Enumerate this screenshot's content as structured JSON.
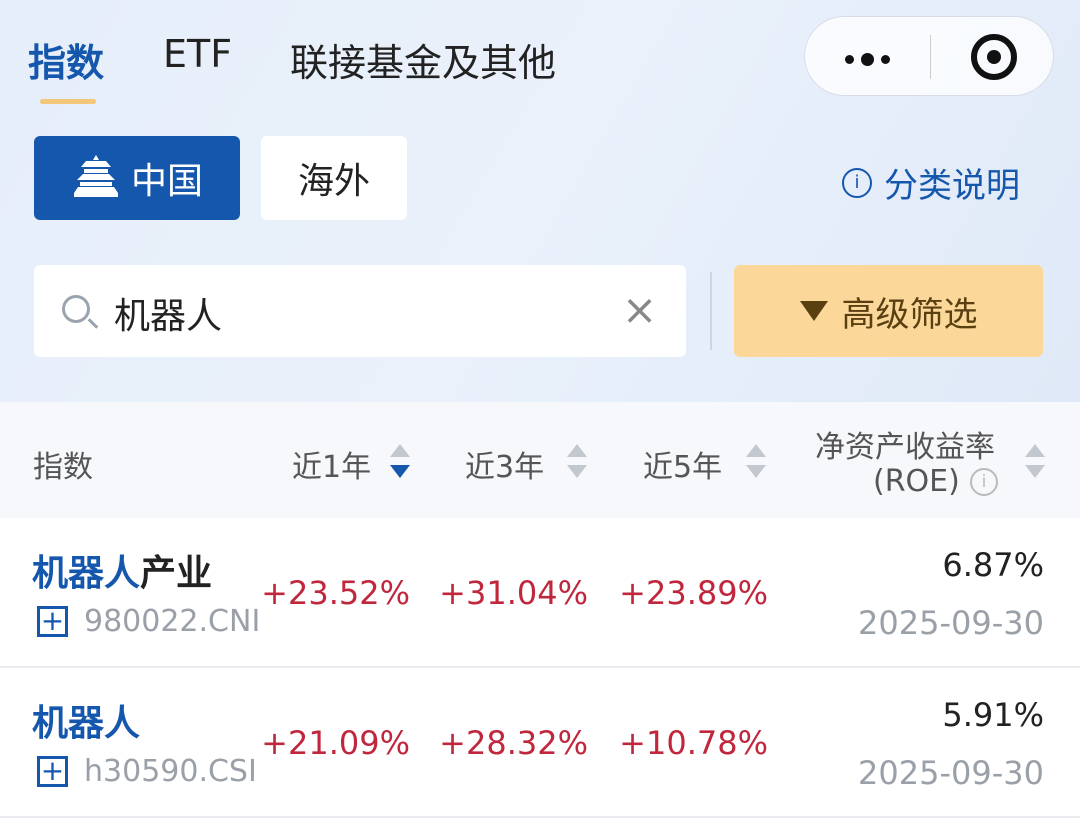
{
  "tabs": [
    {
      "label": "指数",
      "active": true
    },
    {
      "label": "ETF"
    },
    {
      "label": "联接基金及其他"
    }
  ],
  "capsule": {
    "more_icon": "more-dots-icon",
    "close_icon": "target-icon"
  },
  "regions": [
    {
      "label": "中国",
      "icon": "temple-icon",
      "active": true
    },
    {
      "label": "海外"
    }
  ],
  "help": {
    "label": "分类说明",
    "icon": "info-icon"
  },
  "search": {
    "value": "机器人",
    "icon": "search-icon",
    "clear": "×"
  },
  "filter": {
    "label": "高级筛选",
    "icon": "funnel-icon"
  },
  "table": {
    "headers": {
      "index": "指数",
      "y1": "近1年",
      "y3": "近3年",
      "y5": "近5年",
      "roe": "净资产收益率",
      "roe_sub": "(ROE)",
      "roe_info": "i"
    },
    "rows": [
      {
        "name_hl": "机器人",
        "name_rest": "产业",
        "code": "980022.CNI",
        "y1": "+23.52%",
        "y3": "+31.04%",
        "y5": "+23.89%",
        "roe": "6.87%",
        "date": "2025-09-30"
      },
      {
        "name_hl": "机器人",
        "name_rest": "",
        "code": "h30590.CSI",
        "y1": "+21.09%",
        "y3": "+28.32%",
        "y5": "+10.78%",
        "roe": "5.91%",
        "date": "2025-09-30"
      }
    ]
  },
  "colors": {
    "brand": "#1557ad",
    "up": "#c0273d",
    "filter_bg": "#fbd79a"
  }
}
